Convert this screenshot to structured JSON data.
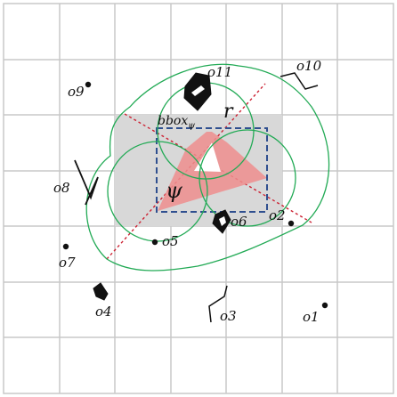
{
  "colors": {
    "grid": "#c8c8c8",
    "bbox_fill": "#d8d8d8",
    "bbox_dash": "#2f4f8f",
    "circle": "#22aa55",
    "diagonal": "#cc2233",
    "polygon": "#ef8e8e",
    "ink": "#111111"
  },
  "labels": {
    "bbox": "bbox",
    "bbox_sub": "ψ",
    "radius": "r",
    "psi": "ψ",
    "objects": [
      "o1",
      "o2",
      "o3",
      "o4",
      "o5",
      "o6",
      "o7",
      "o8",
      "o9",
      "o10",
      "o11"
    ]
  }
}
